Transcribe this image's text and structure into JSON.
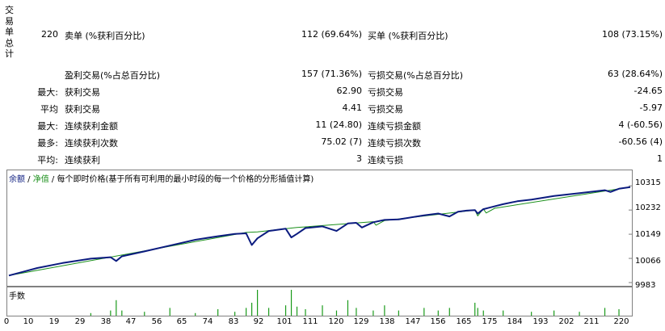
{
  "summary": {
    "title": "交易单总计",
    "total_trades": "220",
    "short_label": "卖单 (%获利百分比)",
    "short_value": "112 (69.64%)",
    "long_label": "买单 (%获利百分比)",
    "long_value": "108 (73.15%)",
    "profit_trades_label": "盈利交易(%占总百分比)",
    "profit_trades_value": "157 (71.36%)",
    "loss_trades_label": "亏损交易(%占总百分比)",
    "loss_trades_value": "63 (28.64%)",
    "rows": [
      {
        "prefix": "最大:",
        "left_label": "获利交易",
        "left_value": "62.90",
        "right_label": "亏损交易",
        "right_value": "-24.65"
      },
      {
        "prefix": "平均",
        "left_label": "获利交易",
        "left_value": "4.41",
        "right_label": "亏损交易",
        "right_value": "-5.97"
      },
      {
        "prefix": "最大:",
        "left_label": "连续获利金额",
        "left_value": "11 (24.80)",
        "right_label": "连续亏损金额",
        "right_value": "4 (-60.56)"
      },
      {
        "prefix": "最多:",
        "left_label": "连续获利次数",
        "left_value": "75.02 (7)",
        "right_label": "连续亏损次数",
        "right_value": "-60.56 (4)"
      },
      {
        "prefix": "平均:",
        "left_label": "连续获利",
        "left_value": "3",
        "right_label": "连续亏损",
        "right_value": "1"
      }
    ]
  },
  "chart": {
    "legend_balance": "余额",
    "legend_sep1": " / ",
    "legend_equity": "净值",
    "legend_sep2": " / ",
    "legend_rest": "每个即时价格(基于所有可利用的最小时段的每一个价格的分形插值计算)",
    "volume_label": "手数",
    "colors": {
      "balance": "#0b1b7f",
      "equity": "#1a8f1a",
      "volume": "#1a9a1a",
      "border": "#808080"
    }
  },
  "chart_data": {
    "type": "line",
    "series": [
      {
        "name": "余额",
        "x": [
          0,
          5,
          10,
          19,
          29,
          36,
          38,
          40,
          48,
          57,
          66,
          74,
          80,
          84,
          86,
          88,
          92,
          98,
          100,
          102,
          105,
          111,
          116,
          120,
          123,
          125,
          129,
          133,
          138,
          147,
          152,
          156,
          159,
          162,
          165,
          166,
          168,
          170,
          175,
          180,
          185,
          193,
          202,
          211,
          213,
          216,
          220
        ],
        "y": [
          10007,
          10020,
          10033,
          10050,
          10065,
          10070,
          10057,
          10073,
          10090,
          10110,
          10130,
          10142,
          10150,
          10152,
          10112,
          10135,
          10160,
          10168,
          10138,
          10150,
          10170,
          10176,
          10160,
          10186,
          10188,
          10172,
          10190,
          10198,
          10200,
          10214,
          10220,
          10210,
          10226,
          10230,
          10232,
          10220,
          10235,
          10240,
          10252,
          10262,
          10268,
          10280,
          10290,
          10300,
          10294,
          10305,
          10311
        ]
      },
      {
        "name": "净值",
        "x": [
          0,
          84,
          88,
          100,
          102,
          129,
          130,
          133,
          165,
          166,
          168,
          169,
          172,
          220
        ],
        "y": [
          10007,
          10155,
          10157,
          10170,
          10172,
          10192,
          10180,
          10196,
          10232,
          10212,
          10236,
          10222,
          10238,
          10311
        ]
      }
    ],
    "volume": {
      "x": [
        29,
        36,
        38,
        40,
        48,
        57,
        66,
        74,
        80,
        84,
        86,
        88,
        92,
        98,
        100,
        102,
        105,
        111,
        116,
        120,
        123,
        129,
        133,
        138,
        147,
        152,
        156,
        165,
        166,
        168,
        175,
        185,
        193,
        202,
        211,
        216
      ],
      "y": [
        0.1,
        0.2,
        0.6,
        0.2,
        0.15,
        0.3,
        0.1,
        0.25,
        0.15,
        0.3,
        0.5,
        1.0,
        0.3,
        0.4,
        1.0,
        0.35,
        0.25,
        0.4,
        0.2,
        0.6,
        0.3,
        0.2,
        0.4,
        0.2,
        0.3,
        0.2,
        0.3,
        0.5,
        0.3,
        0.2,
        0.2,
        0.15,
        0.2,
        0.15,
        0.3,
        0.25
      ]
    },
    "yticks": [
      "10315",
      "10232",
      "10149",
      "10066",
      "9983"
    ],
    "ytick_values": [
      10315,
      10232,
      10149,
      10066,
      9983
    ],
    "xticks": [
      "0",
      "10",
      "19",
      "29",
      "38",
      "47",
      "56",
      "65",
      "74",
      "83",
      "92",
      "101",
      "111",
      "120",
      "129",
      "138",
      "147",
      "156",
      "165",
      "175",
      "184",
      "193",
      "202",
      "211",
      "220"
    ],
    "ylim": [
      9983,
      10335
    ],
    "xlim": [
      0,
      220
    ]
  }
}
